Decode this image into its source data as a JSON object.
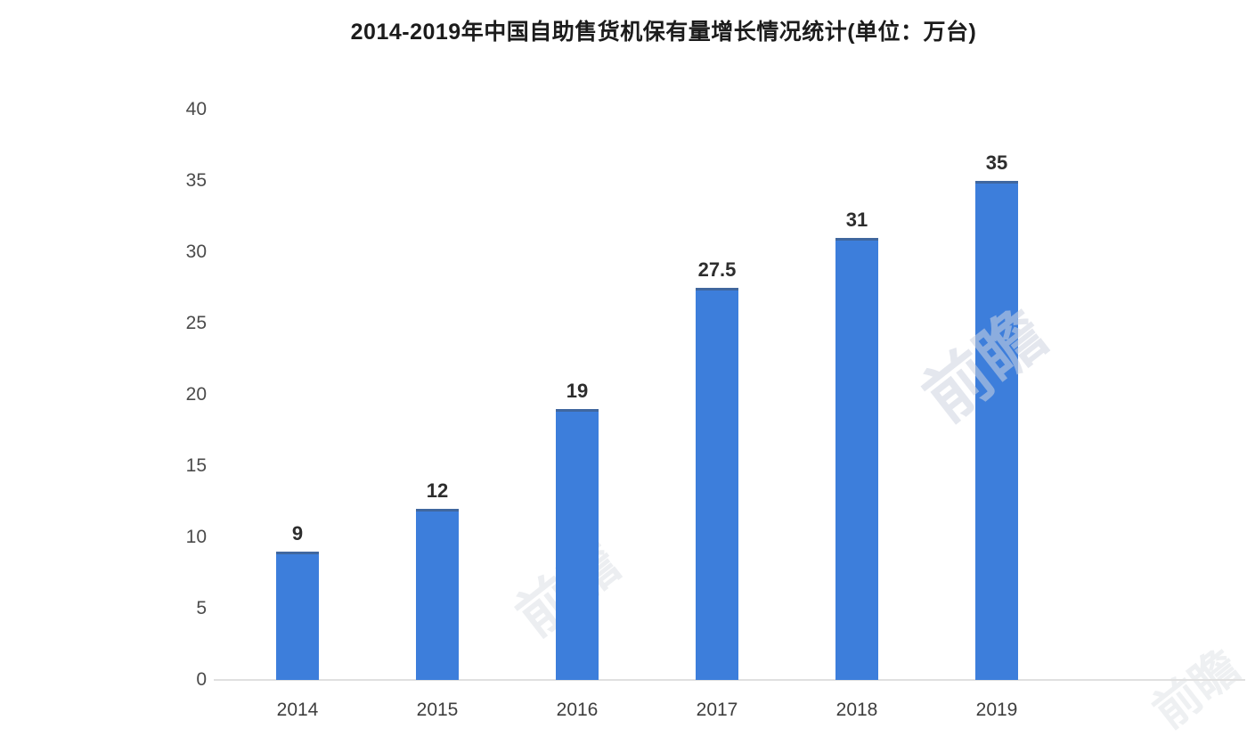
{
  "chart_data": {
    "type": "bar",
    "title": "2014-2019年中国自助售货机保有量增长情况统计(单位：万台)",
    "categories": [
      "2014",
      "2015",
      "2016",
      "2017",
      "2018",
      "2019"
    ],
    "values": [
      9,
      12,
      19,
      27.5,
      31,
      35
    ],
    "value_labels": [
      "9",
      "12",
      "19",
      "27.5",
      "31",
      "35"
    ],
    "ylim": [
      0,
      40
    ],
    "yticks": [
      0,
      5,
      10,
      15,
      20,
      25,
      30,
      35,
      40
    ],
    "xlabel": "",
    "ylabel": "",
    "grid": false,
    "legend": "none",
    "bar_color": "#3d7edb",
    "axis_line_color": "#e0e0e0",
    "title_color": "#1c1c1c",
    "tick_color": "#4b4b4b",
    "value_label_color": "#2d2d2d"
  },
  "watermark": {
    "text": "前瞻"
  }
}
